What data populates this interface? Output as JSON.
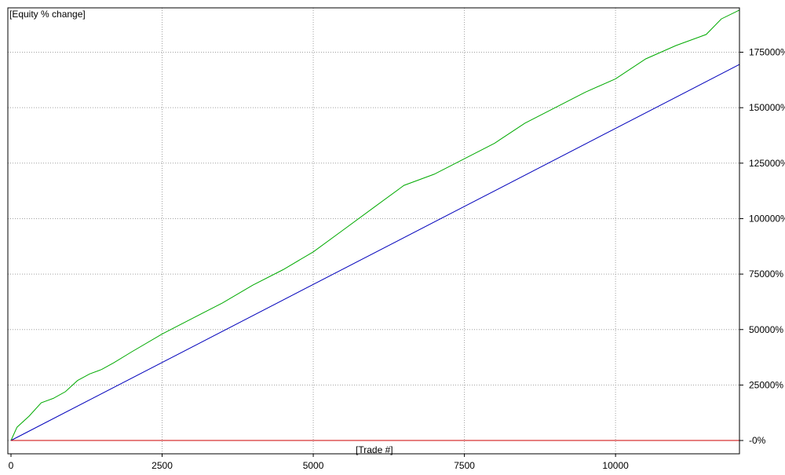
{
  "chart_data": {
    "type": "line",
    "title": "[Equity % change]",
    "xlabel": "[Trade #]",
    "ylabel": "",
    "xlim": [
      0,
      12050
    ],
    "ylim": [
      -6000,
      195000
    ],
    "x_ticks": [
      0,
      2500,
      5000,
      7500,
      10000
    ],
    "x_tick_labels": [
      "0",
      "2500",
      "5000",
      "7500",
      "10000"
    ],
    "y_ticks": [
      0,
      25000,
      50000,
      75000,
      100000,
      125000,
      150000,
      175000
    ],
    "y_tick_labels": [
      "-0%",
      "25000%",
      "50000%",
      "75000%",
      "100000%",
      "125000%",
      "150000%",
      "175000%"
    ],
    "grid": true,
    "legend": "none",
    "series": [
      {
        "color": "#00aa00",
        "x": [
          0,
          100,
          300,
          500,
          700,
          900,
          1100,
          1300,
          1500,
          1700,
          2000,
          2500,
          3000,
          3500,
          4000,
          4500,
          5000,
          5500,
          6000,
          6500,
          7000,
          7500,
          8000,
          8500,
          9000,
          9500,
          10000,
          10500,
          11000,
          11500,
          11750,
          12050
        ],
        "y": [
          0,
          6000,
          11000,
          17000,
          19000,
          22000,
          27000,
          30000,
          32000,
          35000,
          40000,
          48000,
          55000,
          62000,
          70000,
          77000,
          85000,
          95000,
          105000,
          115000,
          120000,
          127000,
          134000,
          143000,
          150000,
          157000,
          163000,
          172000,
          178000,
          183000,
          190000,
          194000
        ]
      },
      {
        "color": "#0000bb",
        "x": [
          0,
          12050
        ],
        "y": [
          0,
          169500
        ]
      },
      {
        "color": "#cc0000",
        "x": [
          0,
          12050
        ],
        "y": [
          0,
          0
        ]
      }
    ]
  }
}
